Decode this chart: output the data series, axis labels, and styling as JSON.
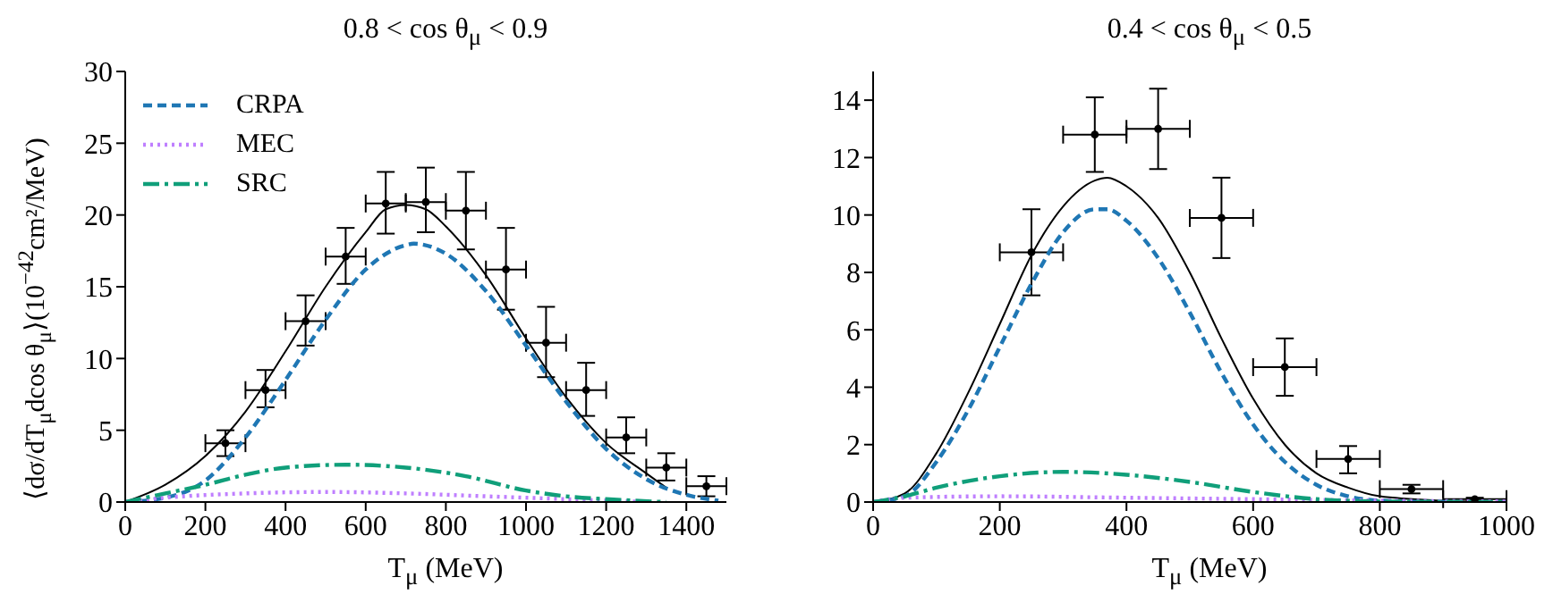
{
  "chart_data": [
    {
      "type": "line",
      "title": "0.8 < cos θ$_{μ}$ < 0.9",
      "xlabel": "T$_{μ}$ (MeV)",
      "ylabel": "⟨dσ/dT$_{μ}$dcos θ$_{μ}$⟩(10$^{−42}$cm²/MeV)",
      "xlim": [
        0,
        1500
      ],
      "xticks": [
        0,
        200,
        400,
        600,
        800,
        1000,
        1200,
        1400
      ],
      "ylim": [
        0,
        30
      ],
      "yticks": [
        0,
        5,
        10,
        15,
        20,
        25,
        30
      ],
      "grid": false,
      "legend": "top left",
      "series": [
        {
          "type": "scatter",
          "color": "#000000",
          "x": [
            250,
            350,
            450,
            550,
            650,
            750,
            850,
            950,
            1050,
            1150,
            1250,
            1350,
            1450
          ],
          "values": [
            4.1,
            7.8,
            12.6,
            17.1,
            20.8,
            20.9,
            20.3,
            16.2,
            11.1,
            7.8,
            4.5,
            2.4,
            1.1
          ],
          "errors": [
            [
              3.2,
              5.0
            ],
            [
              6.6,
              9.2
            ],
            [
              10.9,
              14.4
            ],
            [
              15.2,
              19.1
            ],
            [
              18.7,
              23.0
            ],
            [
              18.8,
              23.3
            ],
            [
              17.6,
              23.0
            ],
            [
              13.4,
              19.1
            ],
            [
              8.7,
              13.6
            ],
            [
              6.0,
              9.7
            ],
            [
              3.4,
              5.9
            ],
            [
              1.5,
              3.4
            ],
            [
              0.4,
              1.8
            ]
          ],
          "xerrors": [
            50,
            50,
            50,
            50,
            50,
            50,
            50,
            50,
            50,
            50,
            50,
            50,
            50
          ]
        },
        {
          "color": "#000000",
          "line_style": "solid",
          "x": [
            0,
            100,
            200,
            300,
            400,
            500,
            600,
            650,
            700,
            750,
            800,
            900,
            1000,
            1100,
            1200,
            1300,
            1350
          ],
          "values": [
            0,
            1.2,
            3.2,
            6.3,
            10.5,
            15,
            18.8,
            20.4,
            20.7,
            20.4,
            19.2,
            15.8,
            11.4,
            7.3,
            4.1,
            2.0,
            1.0
          ]
        },
        {
          "name": "CRPA",
          "color": "#1f77b4",
          "line_style": "dashed",
          "x": [
            0,
            100,
            200,
            300,
            400,
            500,
            600,
            700,
            720,
            800,
            900,
            1000,
            1100,
            1200,
            1300,
            1400,
            1480
          ],
          "values": [
            0,
            0.3,
            1.5,
            4.5,
            8.5,
            12.7,
            16.2,
            17.9,
            18.0,
            17.3,
            14.7,
            10.9,
            7.0,
            3.7,
            1.6,
            0.5,
            0.1
          ]
        },
        {
          "name": "MEC",
          "color": "#bf7fff",
          "line_style": "dotted",
          "x": [
            0,
            100,
            300,
            500,
            700,
            900,
            1100,
            1300
          ],
          "values": [
            0,
            0.3,
            0.6,
            0.7,
            0.6,
            0.4,
            0.2,
            0
          ]
        },
        {
          "name": "SRC",
          "color": "#109f7a",
          "line_style": "dashdot",
          "x": [
            0,
            100,
            200,
            300,
            400,
            550,
            700,
            850,
            1000,
            1100,
            1200,
            1350
          ],
          "values": [
            0,
            0.6,
            1.2,
            1.9,
            2.4,
            2.6,
            2.4,
            1.8,
            0.8,
            0.4,
            0.2,
            0
          ]
        }
      ]
    },
    {
      "type": "line",
      "title": "0.4 < cos θ$_{μ}$ < 0.5",
      "xlabel": "T$_{μ}$ (MeV)",
      "xlim": [
        0,
        1000
      ],
      "xticks": [
        0,
        200,
        400,
        600,
        800,
        1000
      ],
      "ylim": [
        0,
        15
      ],
      "yticks": [
        0,
        2,
        4,
        6,
        8,
        10,
        12,
        14
      ],
      "grid": false,
      "series": [
        {
          "type": "scatter",
          "color": "#000000",
          "x": [
            250,
            350,
            450,
            550,
            650,
            750,
            850,
            950
          ],
          "values": [
            8.7,
            12.8,
            13.0,
            9.9,
            4.7,
            1.5,
            0.45,
            0.1
          ],
          "errors": [
            [
              7.2,
              10.2
            ],
            [
              11.5,
              14.1
            ],
            [
              11.6,
              14.4
            ],
            [
              8.5,
              11.3
            ],
            [
              3.7,
              5.7
            ],
            [
              1.0,
              1.95
            ],
            [
              0.3,
              0.6
            ],
            [
              0.05,
              0.15
            ]
          ],
          "xerrors": [
            50,
            50,
            50,
            50,
            50,
            50,
            50,
            50
          ]
        },
        {
          "color": "#000000",
          "line_style": "solid",
          "x": [
            0,
            50,
            100,
            150,
            200,
            250,
            300,
            350,
            370,
            400,
            450,
            500,
            550,
            600,
            650,
            700,
            750,
            800,
            900,
            1000
          ],
          "values": [
            0,
            0.3,
            1.7,
            3.8,
            6.2,
            8.6,
            10.3,
            11.2,
            11.3,
            11.0,
            9.9,
            8.0,
            5.7,
            3.6,
            2.0,
            1.0,
            0.5,
            0.2,
            0.05,
            0
          ]
        },
        {
          "color": "#1f77b4",
          "line_style": "dashed",
          "x": [
            0,
            50,
            100,
            150,
            200,
            250,
            300,
            350,
            370,
            400,
            450,
            500,
            550,
            600,
            650,
            700,
            750,
            800,
            900,
            1000
          ],
          "values": [
            0,
            0.2,
            1.4,
            3.2,
            5.4,
            7.6,
            9.4,
            10.2,
            10.2,
            9.8,
            8.5,
            6.6,
            4.5,
            2.7,
            1.4,
            0.6,
            0.2,
            0.05,
            0,
            0
          ]
        },
        {
          "color": "#bf7fff",
          "line_style": "dotted",
          "x": [
            0,
            50,
            200,
            400,
            600,
            800,
            1000
          ],
          "values": [
            0,
            0.15,
            0.2,
            0.15,
            0.1,
            0.05,
            0.02
          ]
        },
        {
          "color": "#109f7a",
          "line_style": "dashdot",
          "x": [
            0,
            50,
            100,
            200,
            300,
            400,
            500,
            600,
            700,
            800,
            1000
          ],
          "values": [
            0,
            0.2,
            0.5,
            0.9,
            1.05,
            0.95,
            0.7,
            0.35,
            0.1,
            0.02,
            0
          ]
        }
      ]
    }
  ]
}
